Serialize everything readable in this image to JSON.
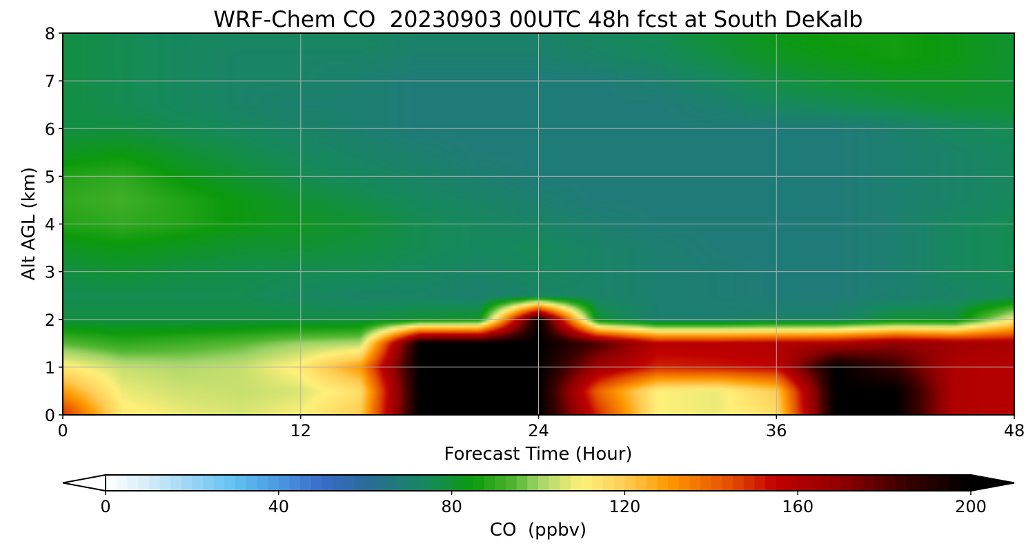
{
  "chart_data": {
    "type": "heatmap",
    "title": "WRF-Chem CO  20230903 00UTC 48h fcst at South DeKalb",
    "xlabel": "Forecast Time (Hour)",
    "ylabel": "Alt AGL (km)",
    "xlim": [
      0,
      48
    ],
    "ylim": [
      0,
      8
    ],
    "xticks": [
      0,
      12,
      24,
      36,
      48
    ],
    "yticks": [
      0,
      1,
      2,
      3,
      4,
      5,
      6,
      7,
      8
    ],
    "grid": true,
    "x": [
      0,
      3,
      6,
      9,
      12,
      15,
      18,
      21,
      24,
      27,
      30,
      33,
      36,
      39,
      42,
      45,
      48
    ],
    "y": [
      0,
      0.5,
      1,
      1.5,
      2,
      2.5,
      3,
      3.5,
      4,
      4.5,
      5,
      5.5,
      6,
      6.5,
      7,
      7.5,
      8
    ],
    "z": [
      [
        150,
        112,
        108,
        106,
        110,
        120,
        200,
        200,
        200,
        150,
        110,
        108,
        115,
        200,
        200,
        160,
        158
      ],
      [
        130,
        108,
        105,
        104,
        106,
        115,
        200,
        200,
        200,
        140,
        110,
        108,
        120,
        200,
        200,
        160,
        158
      ],
      [
        112,
        104,
        102,
        104,
        112,
        130,
        200,
        200,
        200,
        165,
        150,
        152,
        155,
        200,
        185,
        160,
        158
      ],
      [
        95,
        90,
        92,
        95,
        100,
        102,
        200,
        200,
        200,
        182,
        158,
        158,
        160,
        162,
        170,
        165,
        162
      ],
      [
        78,
        78,
        78,
        78,
        78,
        78,
        80,
        82,
        200,
        80,
        70,
        70,
        72,
        72,
        80,
        80,
        110
      ],
      [
        76,
        76,
        76,
        76,
        74,
        72,
        72,
        70,
        72,
        72,
        70,
        69,
        68,
        68,
        70,
        72,
        74
      ],
      [
        78,
        80,
        78,
        77,
        76,
        76,
        74,
        72,
        74,
        72,
        70,
        69,
        68,
        68,
        70,
        74,
        76
      ],
      [
        82,
        84,
        82,
        80,
        80,
        78,
        76,
        74,
        75,
        72,
        70,
        68,
        68,
        68,
        70,
        74,
        76
      ],
      [
        88,
        90,
        88,
        84,
        82,
        80,
        76,
        74,
        72,
        70,
        68,
        68,
        68,
        68,
        70,
        74,
        76
      ],
      [
        90,
        92,
        88,
        84,
        80,
        77,
        74,
        72,
        70,
        68,
        68,
        68,
        68,
        68,
        70,
        72,
        74
      ],
      [
        88,
        90,
        84,
        80,
        76,
        74,
        72,
        70,
        68,
        68,
        68,
        68,
        68,
        68,
        70,
        72,
        74
      ],
      [
        82,
        84,
        80,
        77,
        74,
        72,
        70,
        68,
        68,
        68,
        68,
        68,
        68,
        68,
        70,
        72,
        74
      ],
      [
        78,
        78,
        76,
        74,
        72,
        70,
        68,
        68,
        68,
        68,
        68,
        68,
        68,
        68,
        70,
        74,
        76
      ],
      [
        78,
        76,
        74,
        72,
        70,
        70,
        68,
        68,
        68,
        68,
        68,
        70,
        74,
        76,
        78,
        80,
        80
      ],
      [
        78,
        76,
        74,
        72,
        72,
        70,
        68,
        68,
        68,
        68,
        70,
        74,
        78,
        80,
        82,
        82,
        80
      ],
      [
        78,
        76,
        74,
        72,
        72,
        72,
        70,
        70,
        70,
        72,
        74,
        78,
        82,
        84,
        86,
        84,
        80
      ],
      [
        78,
        76,
        74,
        74,
        74,
        74,
        72,
        72,
        72,
        74,
        76,
        80,
        84,
        86,
        86,
        84,
        80
      ]
    ],
    "colorbar": {
      "label": "CO  (ppbv)",
      "ticks": [
        0,
        40,
        80,
        120,
        160,
        200
      ],
      "min": 0,
      "max": 200,
      "extend": "both",
      "anchor_values": [
        0,
        10,
        20,
        30,
        40,
        50,
        60,
        75,
        85,
        95,
        100,
        110,
        120,
        130,
        145,
        155,
        170,
        185,
        200
      ],
      "anchor_colors": [
        "#ffffff",
        "#d4ecf8",
        "#98d4f4",
        "#60c0f0",
        "#4a98e0",
        "#3a6cc8",
        "#2a6a9a",
        "#168a5a",
        "#0c9a0c",
        "#56b834",
        "#a0d468",
        "#fff07a",
        "#ffcc55",
        "#ff9a00",
        "#e24a00",
        "#c00000",
        "#900000",
        "#380000",
        "#000000"
      ]
    }
  }
}
